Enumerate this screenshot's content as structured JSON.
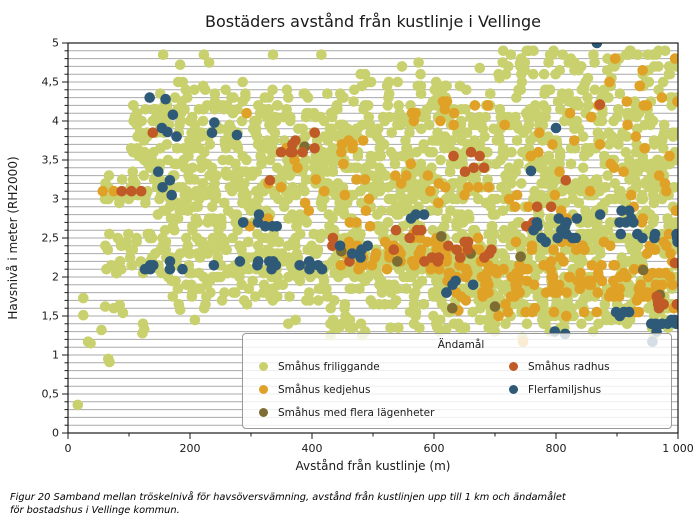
{
  "figure": {
    "caption_line1": "Figur 20 Samband mellan tröskelnivå för havsöversvämning, avstånd från kustlinjen upp till 1 km och ändamålet",
    "caption_line2": "för bostadshus i Vellinge kommun."
  },
  "colors": {
    "background": "#ffffff",
    "frame": "#1a1a1a",
    "grid": "#a9a9a9",
    "text": "#1a1a1a"
  },
  "chart_data": {
    "type": "scatter",
    "title": "Bostäders avstånd från kustlinje i Vellinge",
    "xlabel": "Avstånd från kustlinje (m)",
    "ylabel": "Havsnivå i meter (RH2000)",
    "xlim": [
      0,
      1000
    ],
    "ylim": [
      0,
      5
    ],
    "x_ticks": [
      0,
      200,
      400,
      600,
      800,
      1000
    ],
    "x_tick_labels": [
      "0",
      "200",
      "400",
      "600",
      "800",
      "1 000"
    ],
    "y_ticks": [
      0,
      0.5,
      1,
      1.5,
      2,
      2.5,
      3,
      3.5,
      4,
      4.5,
      5
    ],
    "y_tick_labels": [
      "0",
      "0,5",
      "1",
      "1,5",
      "2",
      "2,5",
      "3",
      "3,5",
      "4",
      "4,5",
      "5"
    ],
    "x_minor_step": 100,
    "y_minor_step": 0.1,
    "grid_horizontal_step": 0.1,
    "legend_title": "Ändamål",
    "legend_position": "lower-center-inside",
    "point_radius": 5.3,
    "seed": 7,
    "series": [
      {
        "name": "Småhus friliggande",
        "color": "#c9d06e",
        "quantize_y": 0.05,
        "clusters": [
          [
            100,
            1000,
            3.3,
            4.2,
            600
          ],
          [
            60,
            1000,
            2.95,
            3.3,
            280
          ],
          [
            140,
            1000,
            2.55,
            2.95,
            200
          ],
          [
            60,
            1000,
            2.0,
            2.55,
            450
          ],
          [
            170,
            560,
            1.6,
            2.0,
            80
          ],
          [
            560,
            1000,
            1.5,
            2.0,
            220
          ],
          [
            420,
            1000,
            1.3,
            1.5,
            60
          ],
          [
            150,
            1000,
            4.2,
            4.5,
            110
          ],
          [
            700,
            1000,
            4.5,
            4.9,
            60
          ],
          [
            140,
            620,
            4.55,
            4.9,
            7
          ],
          [
            240,
            560,
            1.15,
            1.45,
            6
          ]
        ],
        "points": [
          [
            16,
            0.36
          ],
          [
            25,
            1.73
          ],
          [
            25,
            1.51
          ],
          [
            61,
            1.62
          ],
          [
            75,
            1.6
          ],
          [
            85,
            1.64
          ],
          [
            90,
            1.54
          ],
          [
            55,
            1.32
          ],
          [
            33,
            1.17
          ],
          [
            37,
            1.15
          ],
          [
            66,
            0.95
          ],
          [
            68,
            0.91
          ],
          [
            123,
            1.4
          ],
          [
            125,
            1.33
          ],
          [
            122,
            1.28
          ],
          [
            184,
            1.58
          ],
          [
            208,
            1.45
          ],
          [
            156,
            4.85
          ],
          [
            184,
            4.72
          ],
          [
            336,
            4.85
          ],
          [
            487,
            4.6
          ],
          [
            675,
            4.68
          ],
          [
            741,
            4.74
          ],
          [
            605,
            1.36
          ],
          [
            620,
            1.33
          ],
          [
            960,
            1.22
          ],
          [
            985,
            1.4
          ],
          [
            700,
            1.3
          ],
          [
            745,
            1.22
          ]
        ]
      },
      {
        "name": "Småhus kedjehus",
        "color": "#dfa126",
        "quantize_y": 0.05,
        "clusters": [
          [
            620,
            1000,
            1.7,
            2.1,
            95
          ],
          [
            430,
            720,
            2.1,
            2.5,
            55
          ],
          [
            700,
            1000,
            2.1,
            2.45,
            30
          ],
          [
            280,
            620,
            2.55,
            3.5,
            28
          ],
          [
            640,
            1000,
            2.5,
            3.3,
            22
          ],
          [
            600,
            1000,
            3.3,
            4.3,
            22
          ],
          [
            560,
            770,
            3.95,
            4.25,
            10
          ],
          [
            860,
            1000,
            4.15,
            4.8,
            9
          ],
          [
            350,
            560,
            3.5,
            3.75,
            8
          ],
          [
            700,
            1000,
            1.5,
            1.7,
            14
          ]
        ],
        "points": [
          [
            57,
            3.1
          ],
          [
            75,
            3.1
          ],
          [
            293,
            4.1
          ],
          [
            746,
            1.17
          ],
          [
            640,
            1.57
          ]
        ]
      },
      {
        "name": "Småhus med flera lägenheter",
        "color": "#7d6d33",
        "quantize_y": 0.05,
        "clusters": [],
        "points": [
          [
            448,
            2.33
          ],
          [
            630,
            1.6
          ],
          [
            943,
            2.09
          ],
          [
            660,
            2.3
          ],
          [
            970,
            1.77
          ],
          [
            742,
            2.26
          ],
          [
            540,
            2.2
          ],
          [
            612,
            2.52
          ],
          [
            388,
            3.67
          ],
          [
            700,
            1.62
          ]
        ]
      },
      {
        "name": "Småhus radhus",
        "color": "#c05a26",
        "quantize_y": 0.05,
        "clusters": [
          [
            345,
            405,
            3.55,
            3.85,
            8
          ],
          [
            600,
            720,
            3.3,
            3.6,
            6
          ],
          [
            590,
            700,
            2.15,
            2.45,
            13
          ],
          [
            430,
            590,
            2.2,
            2.65,
            9
          ],
          [
            950,
            1000,
            1.55,
            1.75,
            7
          ],
          [
            700,
            810,
            2.6,
            2.9,
            4
          ]
        ],
        "points": [
          [
            88,
            3.1
          ],
          [
            104,
            3.1
          ],
          [
            120,
            3.1
          ],
          [
            139,
            3.85
          ],
          [
            995,
            2.18
          ],
          [
            331,
            3.24
          ],
          [
            872,
            4.21
          ],
          [
            816,
            3.24
          ]
        ]
      },
      {
        "name": "Flerfamiljshus",
        "color": "#2e5977",
        "quantize_y": 0.05,
        "clusters": [
          [
            112,
            420,
            2.08,
            2.22,
            20
          ],
          [
            280,
            345,
            2.55,
            2.8,
            6
          ],
          [
            420,
            500,
            2.2,
            2.42,
            5
          ],
          [
            755,
            838,
            2.45,
            2.78,
            14
          ],
          [
            868,
            928,
            2.62,
            2.88,
            7
          ],
          [
            895,
            1000,
            2.42,
            2.62,
            8
          ],
          [
            884,
            926,
            1.42,
            1.56,
            4
          ],
          [
            928,
            1000,
            1.28,
            1.52,
            8
          ],
          [
            598,
            668,
            1.78,
            1.98,
            5
          ],
          [
            548,
            600,
            2.6,
            2.82,
            3
          ]
        ],
        "points": [
          [
            134,
            4.3
          ],
          [
            160,
            4.28
          ],
          [
            154,
            3.91
          ],
          [
            163,
            3.86
          ],
          [
            172,
            4.08
          ],
          [
            178,
            3.8
          ],
          [
            236,
            3.85
          ],
          [
            277,
            3.82
          ],
          [
            240,
            3.98
          ],
          [
            148,
            3.35
          ],
          [
            167,
            3.24
          ],
          [
            170,
            3.05
          ],
          [
            155,
            3.15
          ],
          [
            867,
            5.0
          ],
          [
            800,
            3.91
          ],
          [
            759,
            3.36
          ],
          [
            798,
            1.3
          ],
          [
            815,
            1.27
          ],
          [
            958,
            1.17
          ]
        ]
      }
    ]
  }
}
